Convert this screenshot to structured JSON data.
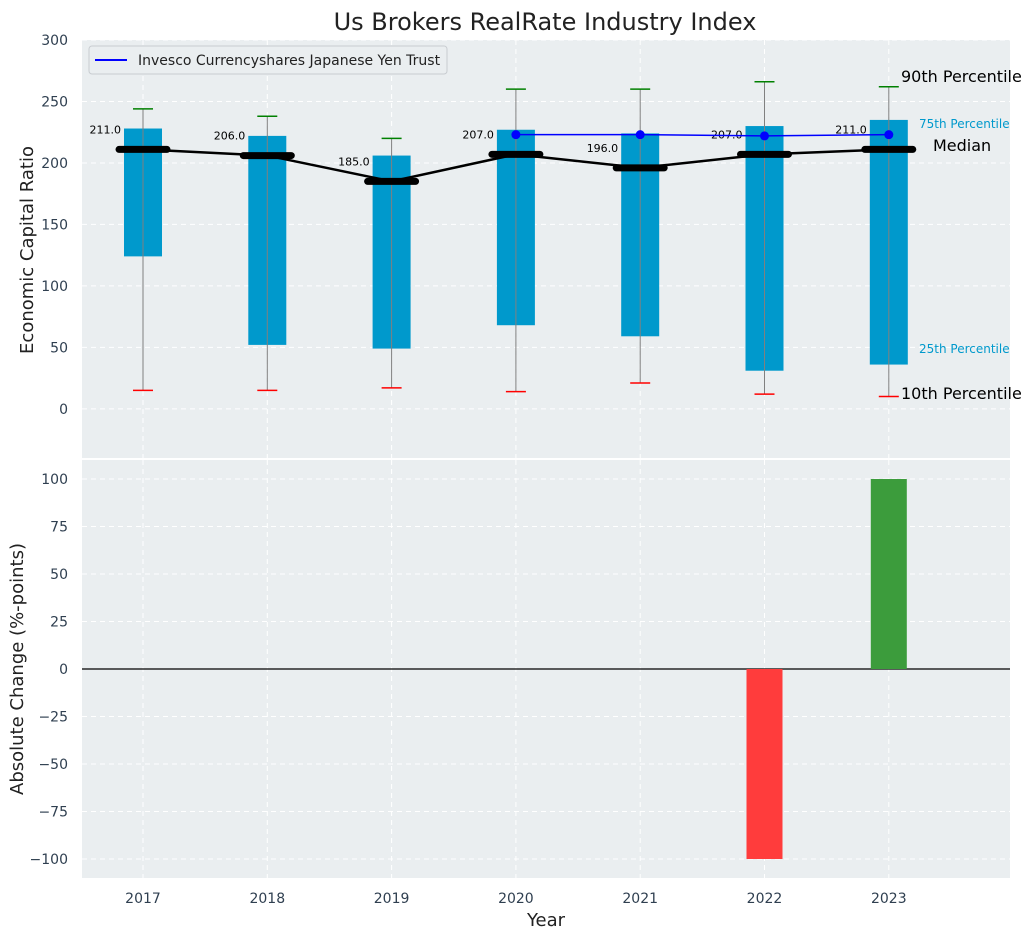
{
  "chart_data": {
    "type": "box",
    "title": "Us Brokers RealRate Industry Index",
    "xlabel": "Year",
    "categories": [
      "2017",
      "2018",
      "2019",
      "2020",
      "2021",
      "2022",
      "2023"
    ],
    "top_panel": {
      "ylabel": "Economic Capital Ratio",
      "ylim": [
        -40,
        300
      ],
      "yticks": [
        0,
        50,
        100,
        150,
        200,
        250,
        300
      ],
      "p10": [
        15,
        15,
        17,
        14,
        21,
        12,
        10
      ],
      "p25": [
        124,
        52,
        49,
        68,
        59,
        31,
        36
      ],
      "median": [
        211,
        206,
        185,
        207,
        196,
        207,
        211
      ],
      "p75": [
        228,
        222,
        206,
        227,
        224,
        230,
        235
      ],
      "p90": [
        244,
        238,
        220,
        260,
        260,
        266,
        262
      ],
      "median_labels": [
        "211.0",
        "206.0",
        "185.0",
        "207.0",
        "196.0",
        "207.0",
        "211.0"
      ],
      "series": [
        {
          "name": "Invesco Currencyshares Japanese Yen Trust",
          "x": [
            "2020",
            "2021",
            "2022",
            "2023"
          ],
          "values": [
            223,
            223,
            222,
            223
          ],
          "color": "#0000ff"
        }
      ],
      "annotations": {
        "p90": "90th Percentile",
        "p75": "75th Percentile",
        "median": "Median",
        "p25": "25th Percentile",
        "p10": "10th Percentile"
      },
      "legend_position": "top-left"
    },
    "bottom_panel": {
      "ylabel": "Absolute Change (%-points)",
      "ylim": [
        -110,
        110
      ],
      "yticks": [
        -100,
        -75,
        -50,
        -25,
        0,
        25,
        50,
        75,
        100
      ],
      "ytick_labels": [
        "−100",
        "−75",
        "−50",
        "−25",
        "0",
        "25",
        "50",
        "75",
        "100"
      ],
      "values": [
        0,
        0,
        0,
        0,
        0,
        -100,
        100
      ]
    },
    "colors": {
      "background": "#eaeef0",
      "box": "#0099cc",
      "median": "#000000",
      "whisker_top": "#008000",
      "whisker_bottom": "#ff0000",
      "whisker_line": "#808080",
      "bar_positive": "#3c9c3c",
      "bar_negative": "#ff3c3c",
      "tick_text": "#2f3f50"
    },
    "grid": true
  }
}
